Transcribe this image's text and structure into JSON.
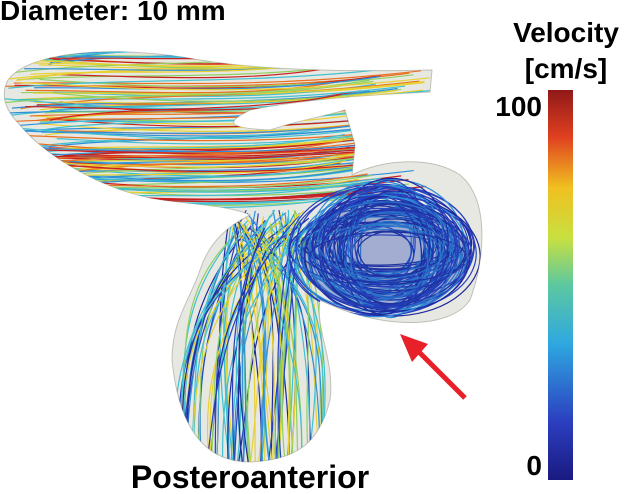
{
  "header": {
    "title": "Diameter: 10 mm"
  },
  "colorbar": {
    "title": [
      "Velocity",
      "[cm/s]"
    ],
    "ticks": [
      100,
      0
    ]
  },
  "caption": "Posteroanterior"
}
